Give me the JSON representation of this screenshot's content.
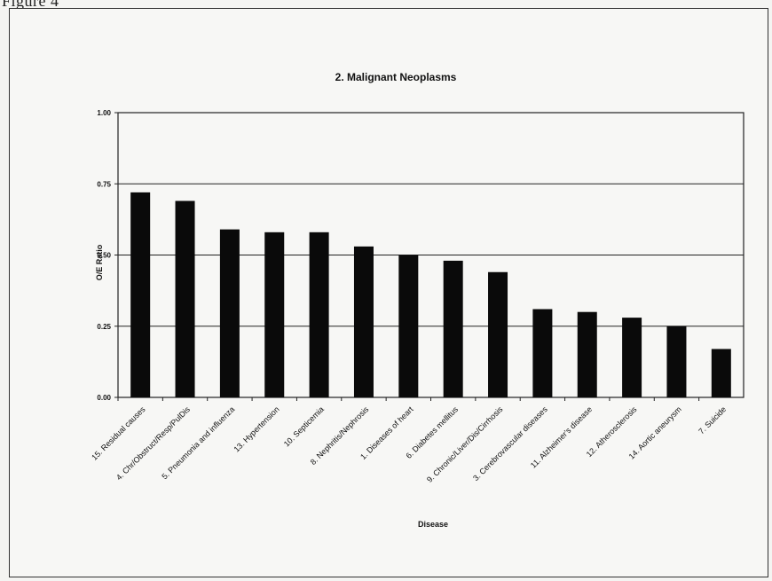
{
  "figure_label": "Figure 4",
  "chart_data": {
    "type": "bar",
    "title": "2. Malignant Neoplasms",
    "xlabel": "Disease",
    "ylabel": "O/E Ratio",
    "ylim": [
      0,
      1
    ],
    "yticks": [
      "0.00",
      "0.25",
      "0.50",
      "0.75",
      "1.00"
    ],
    "ytick_values": [
      0,
      0.25,
      0.5,
      0.75,
      1.0
    ],
    "grid": true,
    "legend": "none",
    "bar_color": "#0a0a0a",
    "categories": [
      "15. Residual causes",
      "4. Chr/Obstruct/Resp/PulDis",
      "5. Pneumonia and influenza",
      "13. Hypertension",
      "10. Septicemia",
      "8. Nephritis/Nephrosis",
      "1. Diseases of heart",
      "6. Diabetes mellitus",
      "9. Chronic/Liver/Dis/Cirrhosis",
      "3. Cerebrovascular diseases",
      "11. Alzheimer's disease",
      "12. Atherosclerosis",
      "14. Aortic aneurysm",
      "7. Suicide"
    ],
    "values": [
      0.72,
      0.69,
      0.59,
      0.58,
      0.58,
      0.53,
      0.5,
      0.48,
      0.44,
      0.31,
      0.3,
      0.28,
      0.25,
      0.17
    ]
  }
}
